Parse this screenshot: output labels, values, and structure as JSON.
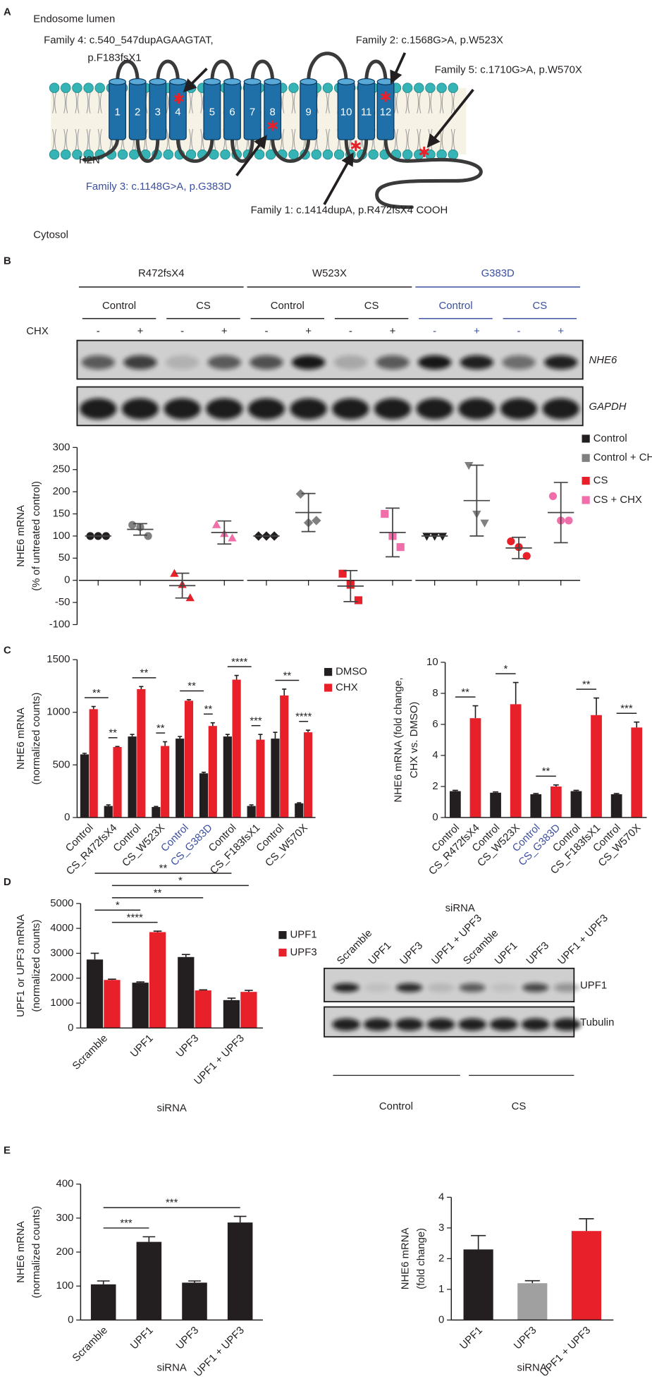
{
  "panel_labels": [
    "A",
    "B",
    "C",
    "D",
    "E"
  ],
  "topology": {
    "lumen": "Endosome lumen",
    "cytosol": "Cytosol",
    "n_term": "H2N",
    "c_term": "COOH",
    "helices": [
      "1",
      "2",
      "3",
      "4",
      "5",
      "6",
      "7",
      "8",
      "9",
      "10",
      "11",
      "12"
    ],
    "mutations": [
      {
        "lines": [
          "Family 4: c.540_547dupAGAAGTAT,",
          "p.F183fsX1"
        ],
        "color": "#231f20"
      },
      {
        "lines": [
          "Family 2: c.1568G>A, p.W523X"
        ],
        "color": "#231f20"
      },
      {
        "lines": [
          "Family 5: c.1710G>A, p.W570X"
        ],
        "color": "#231f20"
      },
      {
        "lines": [
          "Family 3: c.1148G>A, p.G383D"
        ],
        "color": "#3a4fa0"
      },
      {
        "lines": [
          "Family 1: c.1414dupA, p.R472fsX4"
        ],
        "color": "#231f20"
      }
    ]
  },
  "blot_b": {
    "groups": [
      "R472fsX4",
      "W523X",
      "G383D"
    ],
    "group_colors": [
      "#231f20",
      "#231f20",
      "#3a4fa0"
    ],
    "conditions": [
      "Control",
      "CS"
    ],
    "treatment": "CHX",
    "signs": [
      "-",
      "+"
    ],
    "bands": [
      "NHE6",
      "GAPDH"
    ]
  },
  "blot_d": {
    "title": "siRNA",
    "lanes": [
      "Scramble",
      "UPF1",
      "UPF3",
      "UPF1 + UPF3"
    ],
    "bands": [
      "UPF1",
      "Tubulin"
    ],
    "groups": [
      "Control",
      "CS"
    ]
  },
  "chart_data": [
    {
      "type": "dot",
      "ylabel": [
        "NHE6 mRNA",
        "(% of untreated control)"
      ],
      "ylim": [
        -100,
        300
      ],
      "yticks": [
        -100,
        -50,
        0,
        50,
        100,
        150,
        200,
        250,
        300
      ],
      "markers": [
        [
          "circle",
          "circle",
          "triangle",
          "triangle"
        ],
        [
          "diamond",
          "diamond",
          "square",
          "square"
        ],
        [
          "triangle-down",
          "triangle-down",
          "circle",
          "circle"
        ]
      ],
      "series": [
        {
          "name": "Control",
          "color": "#231f20",
          "points": [
            [
              100,
              100,
              100
            ],
            [
              100,
              100,
              100
            ],
            [
              100,
              100,
              100
            ]
          ],
          "mean": [
            100,
            100,
            100
          ],
          "sd": [
            0,
            0,
            0
          ]
        },
        {
          "name": "Control + CHX",
          "color": "#808080",
          "points": [
            [
              125,
              120,
              100
            ],
            [
              195,
              130,
              135
            ],
            [
              260,
              150,
              130
            ]
          ],
          "mean": [
            115,
            153,
            180
          ],
          "sd": [
            13,
            43,
            80
          ]
        },
        {
          "name": "CS",
          "color": "#e8202a",
          "points": [
            [
              15,
              -10,
              -40
            ],
            [
              15,
              -10,
              -45
            ],
            [
              88,
              75,
              55
            ]
          ],
          "mean": [
            -12,
            -13,
            73
          ],
          "sd": [
            28,
            35,
            24
          ]
        },
        {
          "name": "CS + CHX",
          "color": "#f06eaa",
          "points": [
            [
              125,
              105,
              95
            ],
            [
              150,
              100,
              75
            ],
            [
              190,
              135,
              135
            ]
          ],
          "mean": [
            108,
            108,
            153
          ],
          "sd": [
            26,
            55,
            68
          ]
        }
      ]
    },
    {
      "type": "bar",
      "ylabel": [
        "NHE6 mRNA",
        "(normalized counts)"
      ],
      "ylim": [
        0,
        1500
      ],
      "yticks": [
        0,
        500,
        1000,
        1500
      ],
      "categories": [
        "Control",
        "CS_R472fsX4",
        "Control",
        "CS_W523X",
        "Control",
        "CS_G383D",
        "Control",
        "CS_F183fsX1",
        "Control",
        "CS_W570X"
      ],
      "category_colors": [
        "#231f20",
        "#231f20",
        "#231f20",
        "#231f20",
        "#3a4fa0",
        "#3a4fa0",
        "#231f20",
        "#231f20",
        "#231f20",
        "#231f20"
      ],
      "series": [
        {
          "name": "DMSO",
          "color": "#231f20",
          "values": [
            600,
            110,
            770,
            100,
            750,
            420,
            770,
            110,
            750,
            135
          ],
          "errors": [
            10,
            10,
            20,
            5,
            20,
            10,
            20,
            10,
            60,
            5
          ]
        },
        {
          "name": "CHX",
          "color": "#e8202a",
          "values": [
            1030,
            670,
            1220,
            680,
            1110,
            870,
            1310,
            740,
            1160,
            810
          ],
          "errors": [
            25,
            5,
            25,
            40,
            10,
            30,
            40,
            50,
            60,
            20
          ]
        }
      ],
      "brackets": [
        {
          "text": "**",
          "from": [
            0,
            0
          ],
          "to": [
            0,
            1
          ]
        },
        {
          "text": "**",
          "from": [
            0,
            1
          ],
          "to": [
            1,
            1
          ]
        },
        {
          "text": "**",
          "from": [
            0,
            2
          ],
          "to": [
            0,
            3
          ]
        },
        {
          "text": "**",
          "from": [
            0,
            3
          ],
          "to": [
            1,
            3
          ]
        },
        {
          "text": "**",
          "from": [
            0,
            4
          ],
          "to": [
            0,
            5
          ]
        },
        {
          "text": "**",
          "from": [
            0,
            5
          ],
          "to": [
            1,
            5
          ]
        },
        {
          "text": "****",
          "from": [
            0,
            6
          ],
          "to": [
            0,
            7
          ]
        },
        {
          "text": "***",
          "from": [
            0,
            7
          ],
          "to": [
            1,
            7
          ]
        },
        {
          "text": "**",
          "from": [
            0,
            8
          ],
          "to": [
            0,
            9
          ]
        },
        {
          "text": "****",
          "from": [
            0,
            9
          ],
          "to": [
            1,
            9
          ]
        }
      ]
    },
    {
      "type": "bar",
      "ylabel": [
        "NHE6 mRNA (fold change,",
        "CHX vs. DMSO)"
      ],
      "ylim": [
        0,
        10
      ],
      "yticks": [
        0,
        2,
        4,
        6,
        8,
        10
      ],
      "categories": [
        "Control",
        "CS_R472fsX4",
        "Control",
        "CS_W523X",
        "Control",
        "CS_G383D",
        "Control",
        "CS_F183fsX1",
        "Control",
        "CS_W570X"
      ],
      "category_colors": [
        "#231f20",
        "#231f20",
        "#231f20",
        "#231f20",
        "#3a4fa0",
        "#3a4fa0",
        "#231f20",
        "#231f20",
        "#231f20",
        "#231f20"
      ],
      "series": [
        {
          "colors": [
            "#231f20",
            "#e8202a",
            "#231f20",
            "#e8202a",
            "#231f20",
            "#e8202a",
            "#231f20",
            "#e8202a",
            "#231f20",
            "#e8202a"
          ],
          "values": [
            1.7,
            6.4,
            1.6,
            7.3,
            1.5,
            2.0,
            1.7,
            6.6,
            1.5,
            5.8
          ],
          "errors": [
            0.05,
            0.8,
            0.05,
            1.4,
            0.05,
            0.1,
            0.05,
            1.1,
            0.05,
            0.35
          ]
        }
      ],
      "brackets": [
        {
          "text": "**",
          "from": [
            0,
            0
          ],
          "to": [
            0,
            1
          ]
        },
        {
          "text": "*",
          "from": [
            0,
            2
          ],
          "to": [
            0,
            3
          ]
        },
        {
          "text": "**",
          "from": [
            0,
            4
          ],
          "to": [
            0,
            5
          ]
        },
        {
          "text": "**",
          "from": [
            0,
            6
          ],
          "to": [
            0,
            7
          ]
        },
        {
          "text": "***",
          "from": [
            0,
            8
          ],
          "to": [
            0,
            9
          ]
        }
      ]
    },
    {
      "type": "bar",
      "ylabel": [
        "UPF1 or UPF3 mRNA",
        "(normalized counts)"
      ],
      "xlabel": "siRNA",
      "ylim": [
        0,
        5000
      ],
      "yticks": [
        0,
        1000,
        2000,
        3000,
        4000,
        5000
      ],
      "categories": [
        "Scramble",
        "UPF1",
        "UPF3",
        "UPF1 + UPF3"
      ],
      "series": [
        {
          "name": "UPF1",
          "color": "#231f20",
          "values": [
            2750,
            1820,
            2850,
            1120
          ],
          "errors": [
            250,
            30,
            100,
            80
          ]
        },
        {
          "name": "UPF3",
          "color": "#e8202a",
          "values": [
            1930,
            3850,
            1510,
            1450
          ],
          "errors": [
            30,
            40,
            20,
            60
          ]
        }
      ],
      "brackets": [
        {
          "text": "**",
          "from": [
            0,
            0
          ],
          "to": [
            0,
            3
          ]
        },
        {
          "text": "****",
          "from": [
            1,
            0
          ],
          "to": [
            1,
            1
          ]
        },
        {
          "text": "**",
          "from": [
            1,
            0
          ],
          "to": [
            1,
            2
          ]
        },
        {
          "text": "*",
          "from": [
            1,
            0
          ],
          "to": [
            1,
            3
          ]
        },
        {
          "text": "*",
          "from": [
            0,
            0
          ],
          "to": [
            0,
            1
          ]
        }
      ]
    },
    {
      "type": "bar",
      "ylabel": [
        "NHE6 mRNA",
        "(normalized counts)"
      ],
      "xlabel": "siRNA",
      "ylim": [
        0,
        400
      ],
      "yticks": [
        0,
        100,
        200,
        300,
        400
      ],
      "categories": [
        "Scramble",
        "UPF1",
        "UPF3",
        "UPF1 + UPF3"
      ],
      "series": [
        {
          "color": "#231f20",
          "values": [
            105,
            230,
            110,
            287
          ],
          "errors": [
            10,
            15,
            5,
            18
          ]
        }
      ],
      "brackets": [
        {
          "text": "***",
          "from": [
            0,
            0
          ],
          "to": [
            0,
            1
          ]
        },
        {
          "text": "***",
          "from": [
            0,
            0
          ],
          "to": [
            0,
            3
          ]
        }
      ]
    },
    {
      "type": "bar",
      "ylabel": [
        "NHE6 mRNA",
        "(fold change)"
      ],
      "xlabel": "siRNA",
      "ylim": [
        0,
        4
      ],
      "yticks": [
        0,
        1,
        2,
        3,
        4
      ],
      "categories": [
        "UPF1",
        "UPF3",
        "UPF1 + UPF3"
      ],
      "series": [
        {
          "colors": [
            "#231f20",
            "#a0a0a0",
            "#e8202a"
          ],
          "values": [
            2.3,
            1.2,
            2.9
          ],
          "errors": [
            0.45,
            0.08,
            0.4
          ]
        }
      ]
    }
  ]
}
